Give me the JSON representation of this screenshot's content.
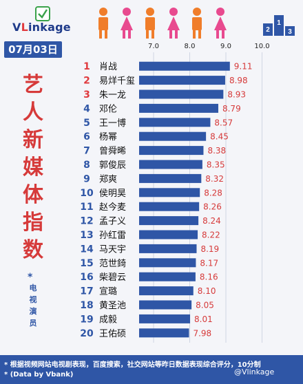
{
  "brand": {
    "logo_text": "VLinkage",
    "logo_v": "V",
    "logo_l": "L",
    "logo_rest": "inkage"
  },
  "header": {
    "date": "07月03日",
    "title_chars": [
      "艺",
      "人",
      "新",
      "媒",
      "体",
      "指",
      "数"
    ],
    "subtitle_star": "*",
    "subtitle_chars": [
      "电",
      "视",
      "演",
      "员"
    ]
  },
  "colors": {
    "bar": "#2f56a6",
    "value_text": "#d63a3a",
    "rank_red": "#e03a3e",
    "rank_blue": "#2f56a6",
    "title_red": "#d63a3a",
    "people_orange": "#f07d2a",
    "people_pink": "#e84a8f",
    "footer_blue": "#2f56a6"
  },
  "icons": [
    "people-icon",
    "podium-icon",
    "logo-mark-icon"
  ],
  "chart_data": {
    "type": "bar",
    "orientation": "horizontal",
    "x_ticks": [
      7.0,
      8.0,
      9.0,
      10.0
    ],
    "x_tick_labels": [
      "7.0",
      "8.0",
      "9.0",
      "10.0"
    ],
    "xlim": [
      6.6,
      10.4
    ],
    "ranks": [
      "1",
      "2",
      "3",
      "4",
      "5",
      "6",
      "7",
      "8",
      "9",
      "10",
      "11",
      "12",
      "13",
      "14",
      "15",
      "16",
      "17",
      "18",
      "19",
      "20"
    ],
    "categories": [
      "肖战",
      "易烊千玺",
      "朱一龙",
      "邓伦",
      "王一博",
      "杨幂",
      "曾舜晞",
      "郭俊辰",
      "郑爽",
      "侯明昊",
      "赵今麦",
      "孟子义",
      "孙红雷",
      "马天宇",
      "范世錡",
      "柴碧云",
      "宣璐",
      "黄圣池",
      "成毅",
      "王佑硕"
    ],
    "values": [
      9.11,
      8.98,
      8.93,
      8.79,
      8.57,
      8.45,
      8.38,
      8.35,
      8.32,
      8.28,
      8.26,
      8.24,
      8.22,
      8.19,
      8.17,
      8.16,
      8.1,
      8.05,
      8.01,
      7.98
    ],
    "value_labels": [
      "9.11",
      "8.98",
      "8.93",
      "8.79",
      "8.57",
      "8.45",
      "8.38",
      "8.35",
      "8.32",
      "8.28",
      "8.26",
      "8.24",
      "8.22",
      "8.19",
      "8.17",
      "8.16",
      "8.10",
      "8.05",
      "8.01",
      "7.98"
    ],
    "grid": true,
    "legend": "none"
  },
  "footer": {
    "note1": "* 根据视频网站电视剧表现，百度搜索，社交网站等昨日数据表现综合评分，10分制",
    "note2": "* (Data by Vbank)",
    "watermark": "@Vlinkage"
  }
}
